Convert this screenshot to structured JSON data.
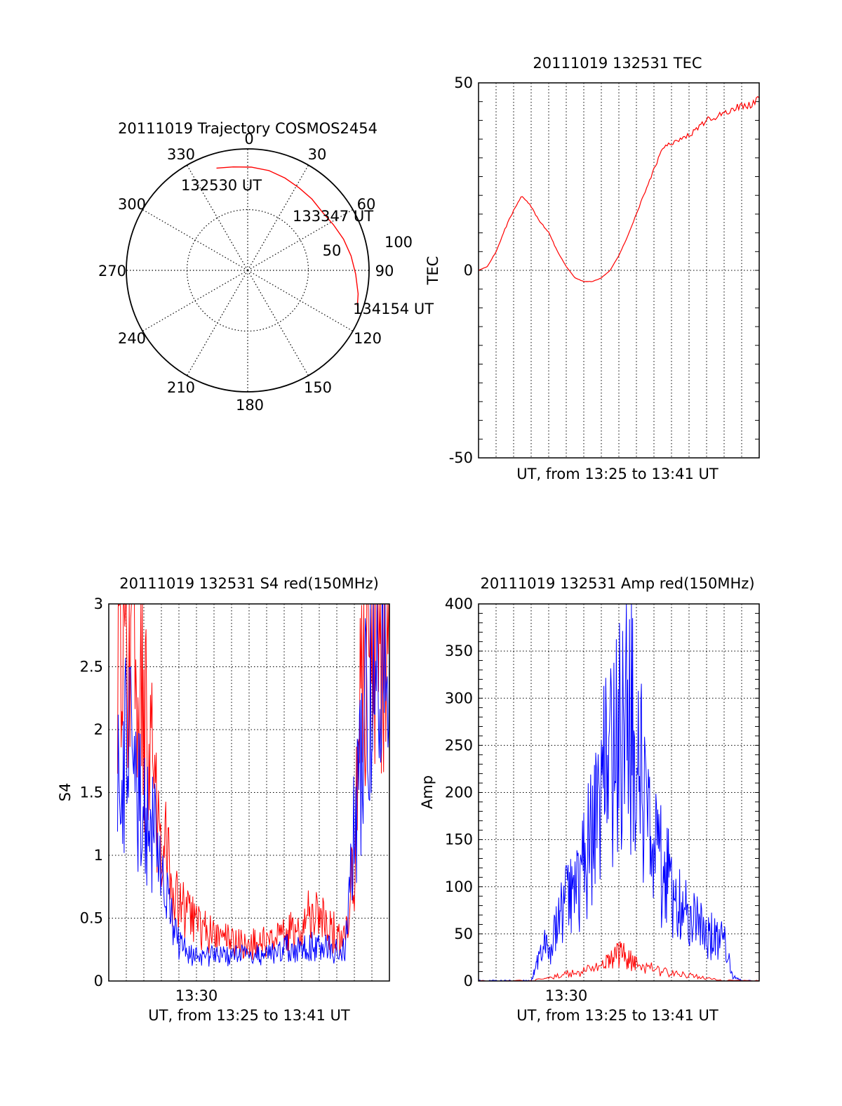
{
  "colors": {
    "red": "#ff0000",
    "blue": "#0000ff",
    "axis": "#000000"
  },
  "chart_data": [
    {
      "type": "polar",
      "title": "20111019 Trajectory COSMOS2454",
      "azimuth_labels": [
        "0",
        "30",
        "60",
        "90",
        "120",
        "150",
        "180",
        "210",
        "240",
        "270",
        "300",
        "330"
      ],
      "radius_labels": [
        "50",
        "100"
      ],
      "rlim": [
        0,
        100
      ],
      "grid": true,
      "series": [
        {
          "color": "red",
          "points": [
            {
              "az": 343,
              "r": 88
            },
            {
              "az": 352,
              "r": 86
            },
            {
              "az": 2,
              "r": 85
            },
            {
              "az": 12,
              "r": 84
            },
            {
              "az": 22,
              "r": 82
            },
            {
              "az": 32,
              "r": 80
            },
            {
              "az": 42,
              "r": 79
            },
            {
              "az": 52,
              "r": 78
            },
            {
              "az": 62,
              "r": 80
            },
            {
              "az": 72,
              "r": 83
            },
            {
              "az": 82,
              "r": 86
            },
            {
              "az": 92,
              "r": 89
            },
            {
              "az": 102,
              "r": 93
            },
            {
              "az": 108,
              "r": 95
            }
          ]
        }
      ],
      "annotations": [
        {
          "text": "132530 UT",
          "az": 341,
          "r": 99
        },
        {
          "text": "133347 UT",
          "az": 57,
          "r": 83
        },
        {
          "text": "134154 UT",
          "az": 107,
          "r": 105
        }
      ]
    },
    {
      "type": "line",
      "title": "20111019 132531 TEC",
      "xlabel": "UT, from 13:25 to 13:41 UT",
      "ylabel": "TEC",
      "xlim": [
        0,
        16
      ],
      "ylim": [
        -50,
        50
      ],
      "yticks": [
        "-50",
        "0",
        "50"
      ],
      "grid": true,
      "series": [
        {
          "color": "red",
          "x": [
            0,
            0.5,
            1,
            1.5,
            2,
            2.5,
            3,
            3.5,
            4,
            4.5,
            5,
            5.5,
            6,
            6.5,
            7,
            7.5,
            8,
            8.5,
            9,
            9.5,
            10,
            10.5,
            11,
            11.5,
            12,
            12.5,
            13,
            13.5,
            14,
            14.5,
            15,
            15.5,
            16
          ],
          "y": [
            0,
            1,
            5,
            11,
            16,
            20,
            17,
            13,
            10,
            5,
            1,
            -2,
            -3,
            -3,
            -2,
            0,
            4,
            9,
            15,
            21,
            27,
            33,
            34,
            35,
            36,
            38,
            40,
            41,
            42,
            43,
            44,
            44,
            46
          ]
        }
      ]
    },
    {
      "type": "line",
      "title": "20111019 132531 S4 red(150MHz)",
      "xlabel": "UT, from 13:25 to 13:41 UT",
      "ylabel": "S4",
      "xlim": [
        0,
        16
      ],
      "ylim": [
        0,
        3
      ],
      "yticks": [
        "0",
        "0.5",
        "1",
        "1.5",
        "2",
        "2.5",
        "3"
      ],
      "xticks": [
        {
          "x": 5,
          "label": "13:30"
        }
      ],
      "grid": true,
      "series": [
        {
          "color": "red",
          "x": [
            0.5,
            1,
            1.5,
            2,
            2.5,
            3,
            3.5,
            4,
            4.5,
            5,
            5.5,
            6,
            6.5,
            7,
            7.5,
            8,
            8.5,
            9,
            9.5,
            10,
            10.5,
            11,
            11.5,
            12,
            12.5,
            13,
            13.5,
            14,
            14.5,
            15,
            15.5,
            16
          ],
          "y": [
            3,
            3,
            3,
            2.2,
            1.6,
            1.2,
            0.8,
            0.6,
            0.5,
            0.45,
            0.4,
            0.35,
            0.33,
            0.3,
            0.3,
            0.28,
            0.3,
            0.3,
            0.33,
            0.35,
            0.4,
            0.45,
            0.55,
            0.5,
            0.45,
            0.35,
            0.3,
            1.0,
            2.6,
            3,
            3,
            2.8
          ]
        },
        {
          "color": "blue",
          "x": [
            0.5,
            1,
            1.5,
            2,
            2.5,
            3,
            3.5,
            4,
            4.5,
            5,
            5.5,
            6,
            6.5,
            7,
            7.5,
            8,
            8.5,
            9,
            9.5,
            10,
            10.5,
            11,
            11.5,
            12,
            12.5,
            13,
            13.5,
            14,
            14.5,
            15,
            15.5,
            16
          ],
          "y": [
            1.7,
            1.9,
            1.6,
            1.4,
            1.2,
            0.8,
            0.5,
            0.3,
            0.22,
            0.2,
            0.2,
            0.2,
            0.2,
            0.19,
            0.2,
            0.2,
            0.21,
            0.22,
            0.25,
            0.26,
            0.26,
            0.27,
            0.28,
            0.27,
            0.25,
            0.25,
            0.28,
            1.2,
            2.0,
            2.4,
            2.6,
            2.7
          ]
        }
      ]
    },
    {
      "type": "line",
      "title": "20111019 132531 Amp red(150MHz)",
      "xlabel": "UT, from 13:25 to 13:41 UT",
      "ylabel": "Amp",
      "xlim": [
        0,
        16
      ],
      "ylim": [
        0,
        400
      ],
      "yticks": [
        "0",
        "50",
        "100",
        "150",
        "200",
        "250",
        "300",
        "350",
        "400"
      ],
      "xticks": [
        {
          "x": 5,
          "label": "13:30"
        }
      ],
      "grid": true,
      "series": [
        {
          "color": "blue",
          "x": [
            0,
            1,
            2,
            3,
            3.2,
            3.6,
            4,
            4.5,
            5,
            5.5,
            6,
            6.5,
            7,
            7.5,
            8,
            8.5,
            9,
            9.5,
            10,
            10.5,
            11,
            11.5,
            12,
            12.5,
            13,
            13.5,
            14,
            14.5,
            15,
            16
          ],
          "y": [
            0,
            0,
            0,
            0,
            10,
            40,
            30,
            60,
            80,
            90,
            120,
            160,
            200,
            220,
            260,
            290,
            240,
            180,
            140,
            120,
            100,
            80,
            70,
            60,
            50,
            45,
            40,
            5,
            0,
            0
          ]
        },
        {
          "color": "red",
          "x": [
            0,
            3,
            4,
            5,
            6,
            7,
            7.5,
            8,
            8.5,
            9,
            10,
            11,
            12,
            13,
            14,
            16
          ],
          "y": [
            0,
            0,
            3,
            8,
            10,
            15,
            20,
            30,
            25,
            18,
            12,
            8,
            6,
            3,
            0,
            0
          ]
        }
      ]
    }
  ]
}
